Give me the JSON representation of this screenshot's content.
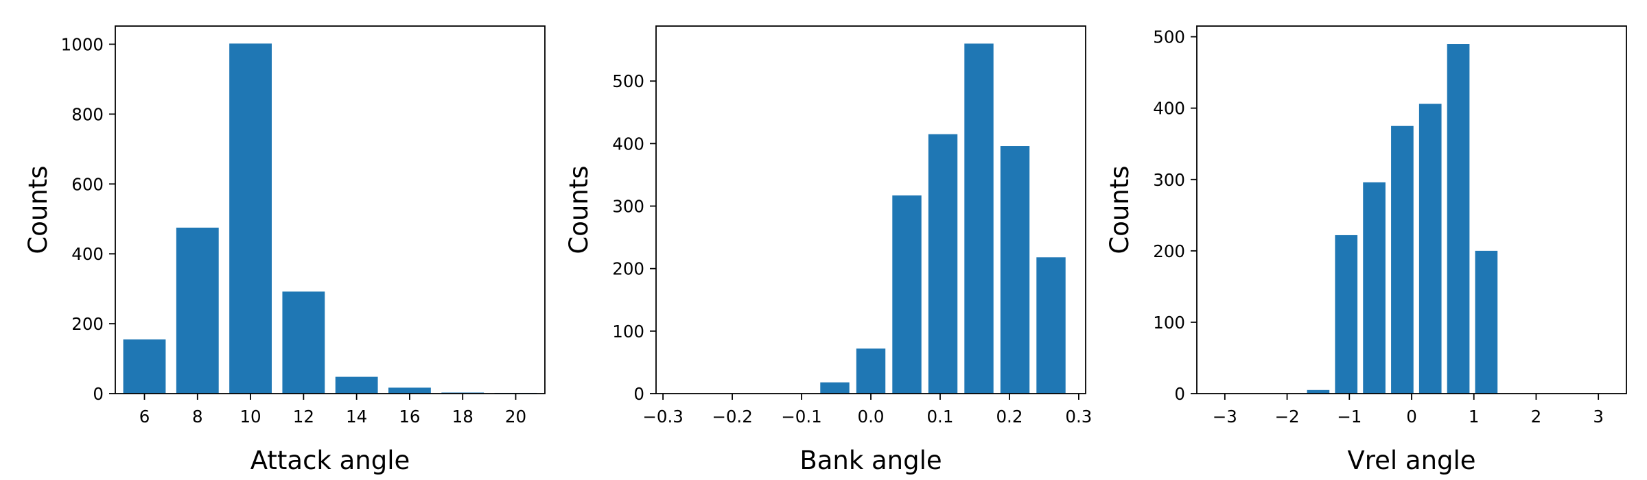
{
  "chart_data": [
    {
      "type": "bar",
      "xlabel": "Attack angle",
      "ylabel": "Counts",
      "xlim": [
        4.9,
        21.1
      ],
      "ylim": [
        0,
        1052
      ],
      "xticks": [
        6,
        8,
        10,
        12,
        14,
        16,
        18,
        20
      ],
      "xtick_labels": [
        "6",
        "8",
        "10",
        "12",
        "14",
        "16",
        "18",
        "20"
      ],
      "yticks": [
        0,
        200,
        400,
        600,
        800,
        1000
      ],
      "ytick_labels": [
        "0",
        "200",
        "400",
        "600",
        "800",
        "1000"
      ],
      "bar_width": 1.6,
      "bars": [
        {
          "x": 6,
          "value": 155
        },
        {
          "x": 8,
          "value": 475
        },
        {
          "x": 10,
          "value": 1002
        },
        {
          "x": 12,
          "value": 292
        },
        {
          "x": 14,
          "value": 48
        },
        {
          "x": 16,
          "value": 17
        },
        {
          "x": 18,
          "value": 3
        },
        {
          "x": 20,
          "value": 2
        }
      ],
      "color": "#1f77b4",
      "grid": false
    },
    {
      "type": "bar",
      "xlabel": "Bank angle",
      "ylabel": "Counts",
      "xlim": [
        -0.31,
        0.31
      ],
      "ylim": [
        0,
        588
      ],
      "xticks": [
        -0.3,
        -0.2,
        -0.1,
        0.0,
        0.1,
        0.2,
        0.3
      ],
      "xtick_labels": [
        "−0.3",
        "−0.2",
        "−0.1",
        "0.0",
        "0.1",
        "0.2",
        "0.3"
      ],
      "yticks": [
        0,
        100,
        200,
        300,
        400,
        500
      ],
      "ytick_labels": [
        "0",
        "100",
        "200",
        "300",
        "400",
        "500"
      ],
      "bar_width": 0.042,
      "bars": [
        {
          "x": -0.294,
          "value": 0
        },
        {
          "x": -0.242,
          "value": 0
        },
        {
          "x": -0.19,
          "value": 0
        },
        {
          "x": -0.138,
          "value": 0
        },
        {
          "x": -0.052,
          "value": 18
        },
        {
          "x": 0.0,
          "value": 72
        },
        {
          "x": 0.052,
          "value": 317
        },
        {
          "x": 0.104,
          "value": 415
        },
        {
          "x": 0.156,
          "value": 560
        },
        {
          "x": 0.208,
          "value": 396
        },
        {
          "x": 0.26,
          "value": 218
        }
      ],
      "color": "#1f77b4",
      "grid": false
    },
    {
      "type": "bar",
      "xlabel": "Vrel angle",
      "ylabel": "Counts",
      "xlim": [
        -3.45,
        3.45
      ],
      "ylim": [
        0,
        515
      ],
      "xticks": [
        -3,
        -2,
        -1,
        0,
        1,
        2,
        3
      ],
      "xtick_labels": [
        "−3",
        "−2",
        "−1",
        "0",
        "1",
        "2",
        "3"
      ],
      "yticks": [
        0,
        100,
        200,
        300,
        400,
        500
      ],
      "yticks_labels_note": "",
      "ytick_labels": [
        "0",
        "100",
        "200",
        "300",
        "400",
        "500"
      ],
      "bar_width": 0.36,
      "bars": [
        {
          "x": -1.5,
          "value": 5
        },
        {
          "x": -1.05,
          "value": 222
        },
        {
          "x": -0.6,
          "value": 296
        },
        {
          "x": -0.15,
          "value": 375
        },
        {
          "x": 0.3,
          "value": 406
        },
        {
          "x": 0.75,
          "value": 490
        },
        {
          "x": 1.2,
          "value": 200
        }
      ],
      "color": "#1f77b4",
      "grid": false
    }
  ]
}
